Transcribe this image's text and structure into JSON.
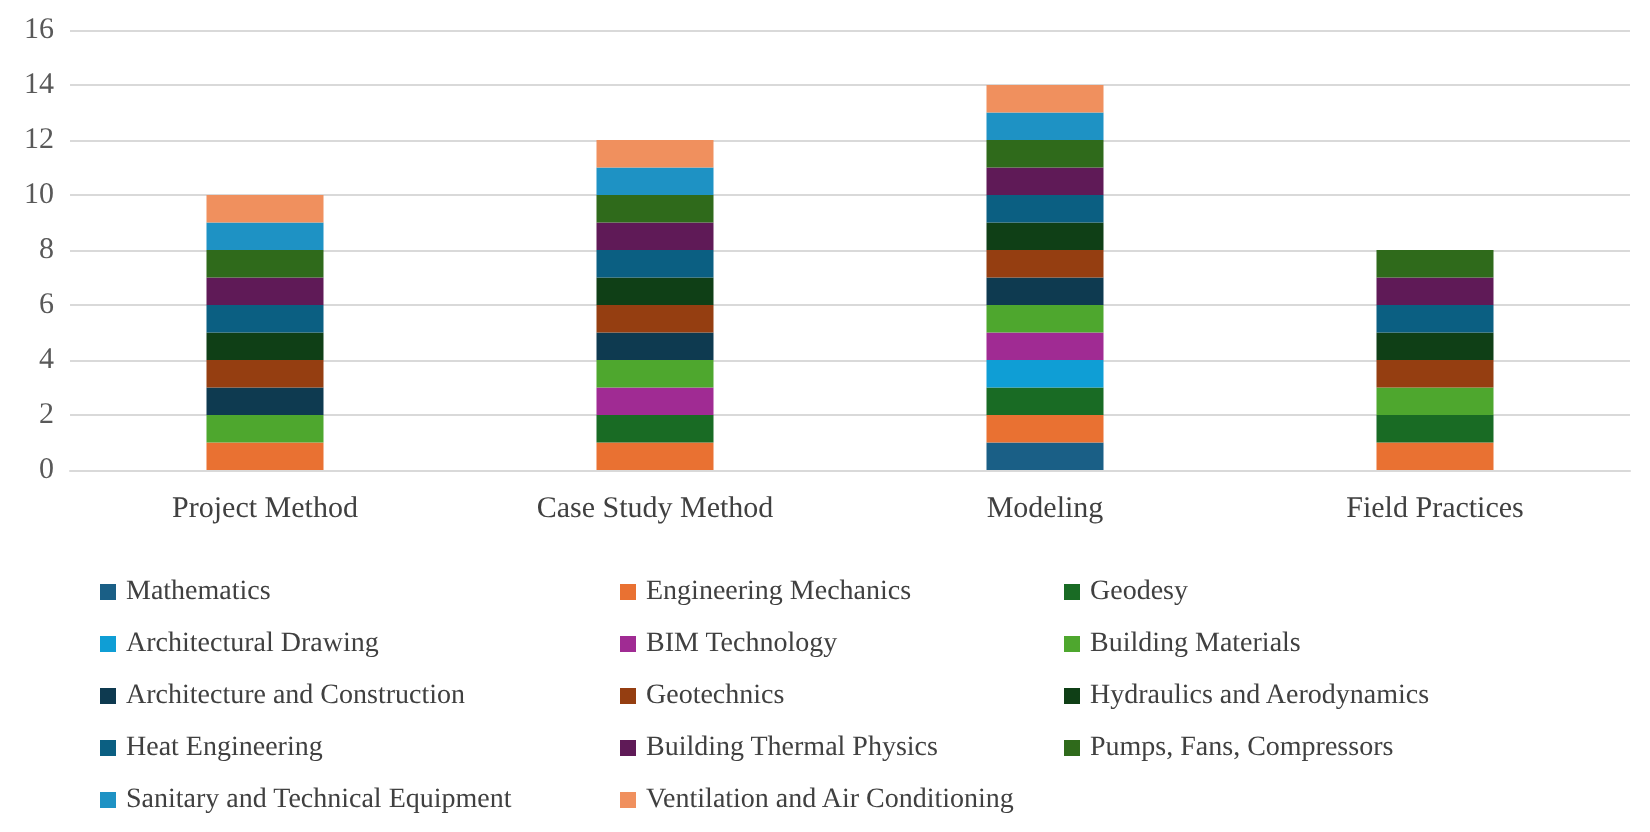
{
  "chart_data": {
    "type": "bar",
    "stacked": true,
    "categories": [
      "Project Method",
      "Case Study Method",
      "Modeling",
      "Field Practices"
    ],
    "ylim": [
      0,
      16
    ],
    "yticks": [
      0,
      2,
      4,
      6,
      8,
      10,
      12,
      14,
      16
    ],
    "grid": "y",
    "legend": "bottom",
    "series": [
      {
        "name": "Mathematics",
        "color": "#1a5f86",
        "values": [
          0,
          0,
          1,
          0
        ]
      },
      {
        "name": "Engineering Mechanics",
        "color": "#e97132",
        "values": [
          1,
          1,
          1,
          1
        ]
      },
      {
        "name": "Geodesy",
        "color": "#196b24",
        "values": [
          0,
          1,
          1,
          1
        ]
      },
      {
        "name": "Architectural Drawing",
        "color": "#0f9ed5",
        "values": [
          0,
          0,
          1,
          0
        ]
      },
      {
        "name": "BIM Technology",
        "color": "#a02b93",
        "values": [
          0,
          1,
          1,
          0
        ]
      },
      {
        "name": "Building Materials",
        "color": "#4ea72e",
        "values": [
          1,
          1,
          1,
          1
        ]
      },
      {
        "name": "Architecture and Construction",
        "color": "#0e3a50",
        "values": [
          1,
          1,
          1,
          0
        ]
      },
      {
        "name": "Geotechnics",
        "color": "#953e11",
        "values": [
          1,
          1,
          1,
          1
        ]
      },
      {
        "name": "Hydraulics and Aerodynamics",
        "color": "#0f3f16",
        "values": [
          1,
          1,
          1,
          1
        ]
      },
      {
        "name": "Heat Engineering",
        "color": "#0b5f82",
        "values": [
          1,
          1,
          1,
          1
        ]
      },
      {
        "name": "Building Thermal Physics",
        "color": "#5f1a57",
        "values": [
          1,
          1,
          1,
          1
        ]
      },
      {
        "name": "Pumps, Fans, Compressors",
        "color": "#2f6a1b",
        "values": [
          1,
          1,
          1,
          1
        ]
      },
      {
        "name": "Sanitary and Technical Equipment",
        "color": "#1e92c4",
        "values": [
          1,
          1,
          1,
          0
        ]
      },
      {
        "name": "Ventilation and Air Conditioning",
        "color": "#f0905e",
        "values": [
          1,
          1,
          1,
          0
        ]
      }
    ]
  }
}
